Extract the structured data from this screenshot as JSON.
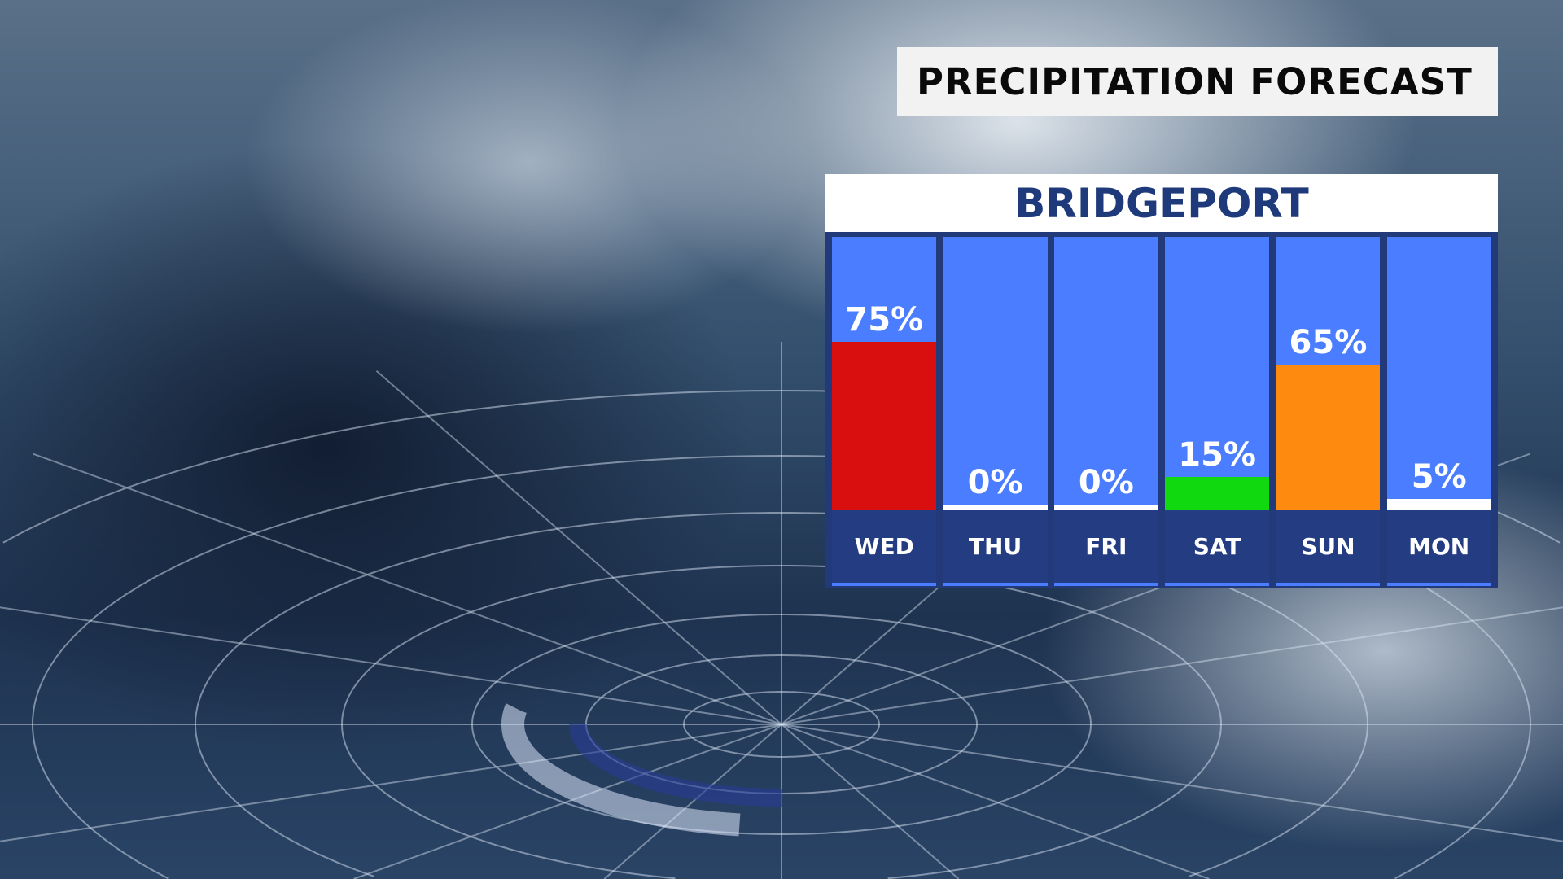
{
  "title": "PRECIPITATION FORECAST",
  "chart_data": {
    "type": "bar",
    "title": "BRIDGEPORT",
    "categories": [
      "WED",
      "THU",
      "FRI",
      "SAT",
      "SUN",
      "MON"
    ],
    "values": [
      75,
      0,
      0,
      15,
      65,
      5
    ],
    "labels": [
      "75%",
      "0%",
      "0%",
      "15%",
      "65%",
      "5%"
    ],
    "colors": [
      "#d90f0f",
      "#ffffff",
      "#ffffff",
      "#10d910",
      "#ff8a10",
      "#ffffff"
    ],
    "ylim": [
      0,
      100
    ],
    "grid": false
  },
  "colors": {
    "column": "#4a7dff",
    "day_band": "#233c82",
    "title_text": "#1f3a7a"
  }
}
